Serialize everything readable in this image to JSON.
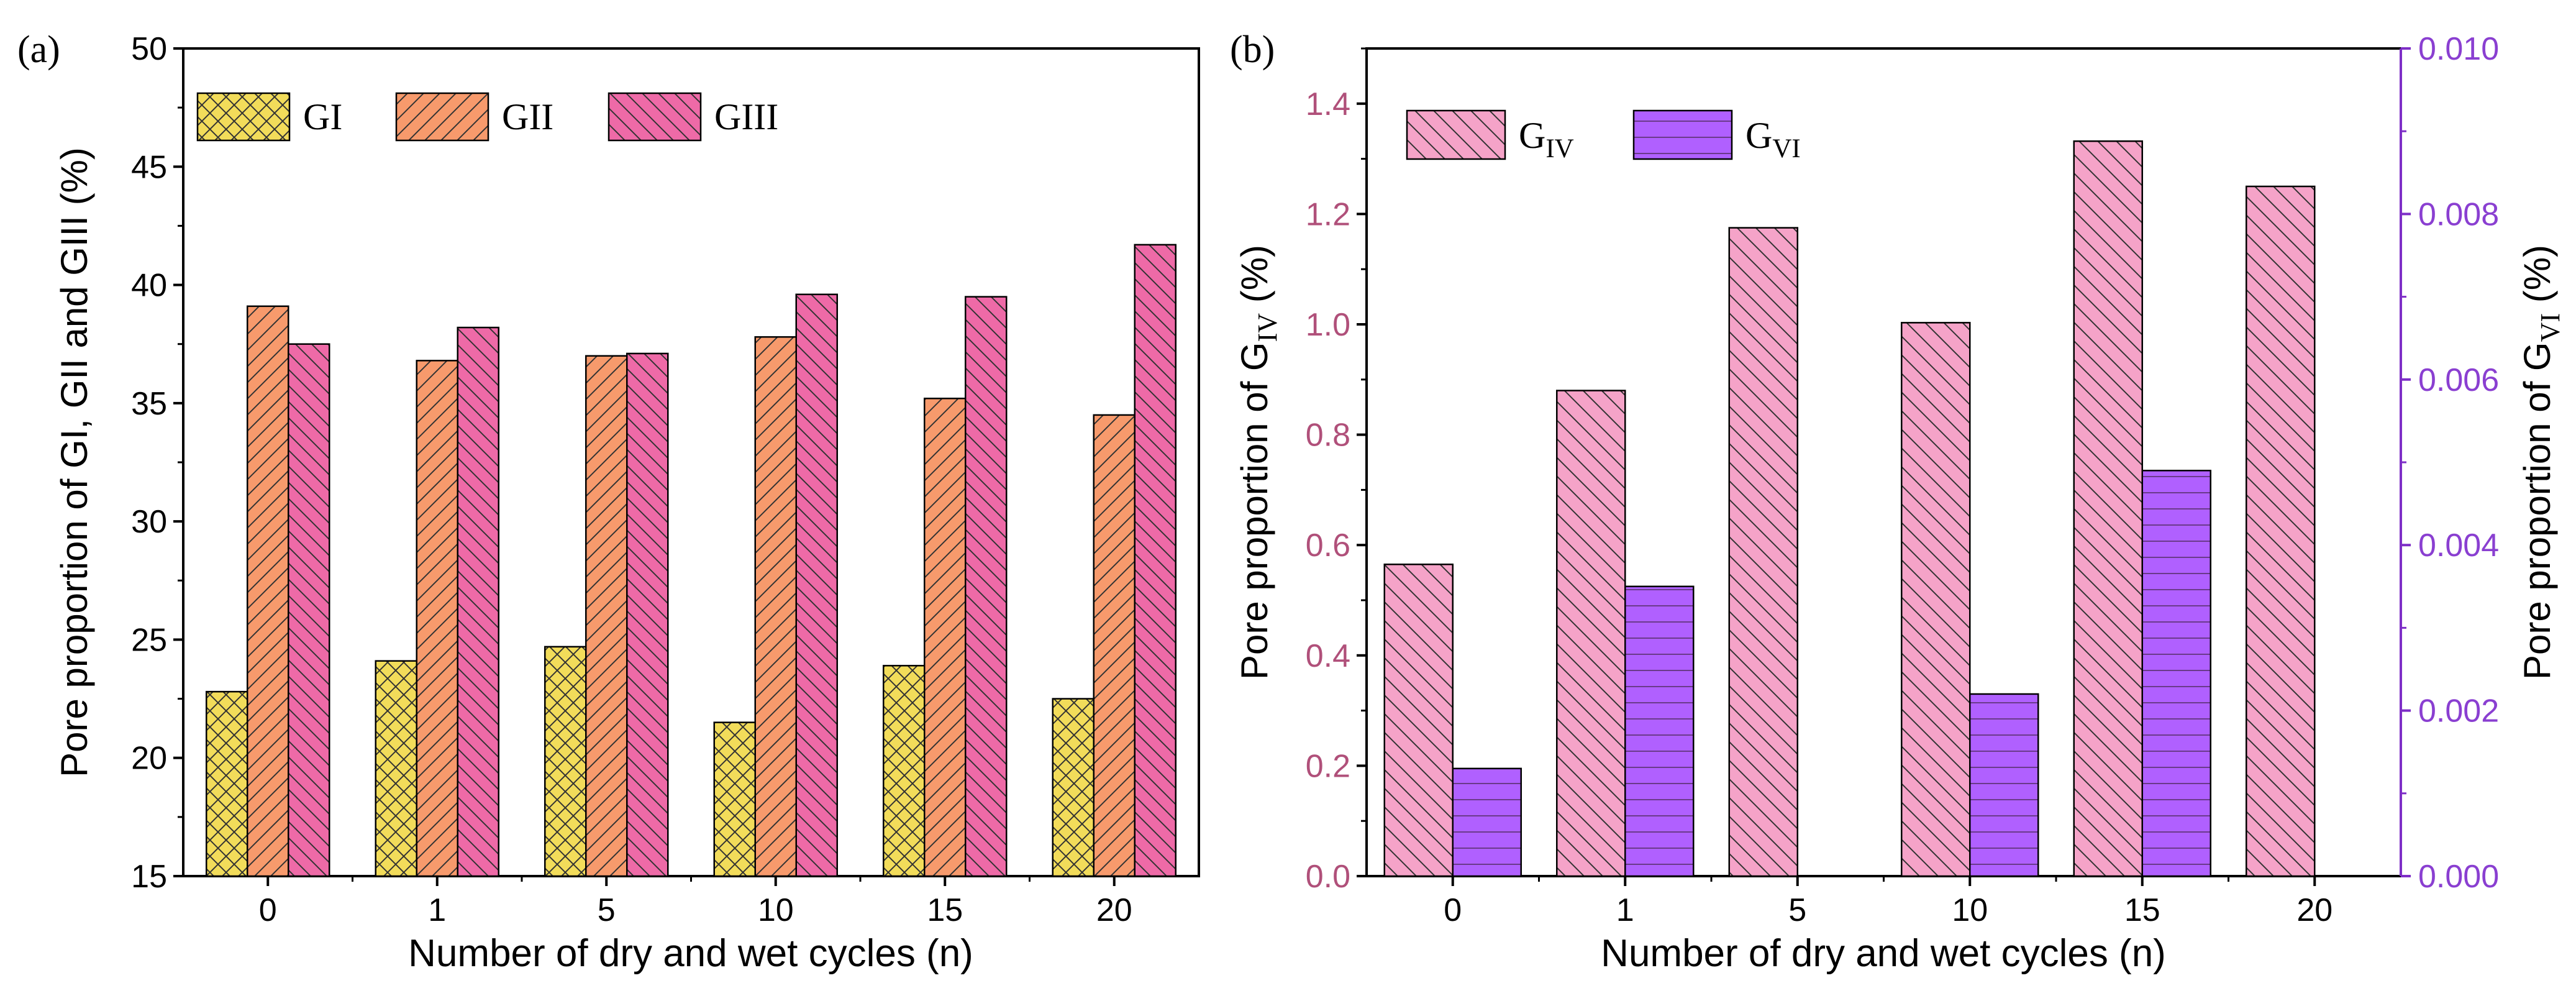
{
  "colors": {
    "gi": "#f2dc5a",
    "gii": "#f79a6c",
    "giii": "#ee6aa7",
    "giv": "#f5a3c8",
    "gvi": "#b060ff",
    "right_axis": "#7e2fc7",
    "b_left_ticks": "#b0507a",
    "b_right_ticks": "#8a3fd1"
  },
  "chart_data": [
    {
      "panel_label": "(a)",
      "type": "bar",
      "categories": [
        "0",
        "1",
        "5",
        "10",
        "15",
        "20"
      ],
      "series": [
        {
          "name": "GI",
          "values": [
            22.8,
            24.1,
            24.7,
            21.5,
            23.9,
            22.5
          ]
        },
        {
          "name": "GII",
          "values": [
            39.1,
            36.8,
            37.0,
            37.8,
            35.2,
            34.5
          ]
        },
        {
          "name": "GIII",
          "values": [
            37.5,
            38.2,
            37.1,
            39.6,
            39.5,
            41.7
          ]
        }
      ],
      "xlabel": "Number of dry and wet cycles (n)",
      "ylabel": "Pore proportion of GI, GII and GIII (%)",
      "ylim": [
        15,
        50
      ],
      "yticks": [
        "15",
        "20",
        "25",
        "30",
        "35",
        "40",
        "45",
        "50"
      ],
      "legend": [
        "GI",
        "GII",
        "GIII"
      ],
      "legend_position": "top-left"
    },
    {
      "panel_label": "(b)",
      "type": "bar",
      "categories": [
        "0",
        "1",
        "5",
        "10",
        "15",
        "20"
      ],
      "series": [
        {
          "name": "GIV",
          "axis": "left",
          "values": [
            0.565,
            0.88,
            1.175,
            1.003,
            1.332,
            1.25
          ]
        },
        {
          "name": "GVI",
          "axis": "right",
          "values": [
            0.0013,
            0.0035,
            0.0,
            0.0022,
            0.0049,
            0.0
          ]
        }
      ],
      "xlabel": "Number of dry and wet cycles (n)",
      "ylabel_left": {
        "base": "Pore proportion of G",
        "sub": "IV",
        "suffix": " (%)"
      },
      "ylabel_right": {
        "base": "Pore proportion of G",
        "sub": "VI",
        "suffix": " (%)"
      },
      "ylim_left": [
        0,
        1.5
      ],
      "yticks_left": [
        "0.0",
        "0.2",
        "0.4",
        "0.6",
        "0.8",
        "1.0",
        "1.2",
        "1.4"
      ],
      "ylim_right": [
        0,
        0.01
      ],
      "yticks_right": [
        "0.000",
        "0.002",
        "0.004",
        "0.006",
        "0.008",
        "0.010"
      ],
      "legend": [
        {
          "base": "G",
          "sub": "IV"
        },
        {
          "base": "G",
          "sub": "VI"
        }
      ],
      "legend_position": "top-left"
    }
  ]
}
